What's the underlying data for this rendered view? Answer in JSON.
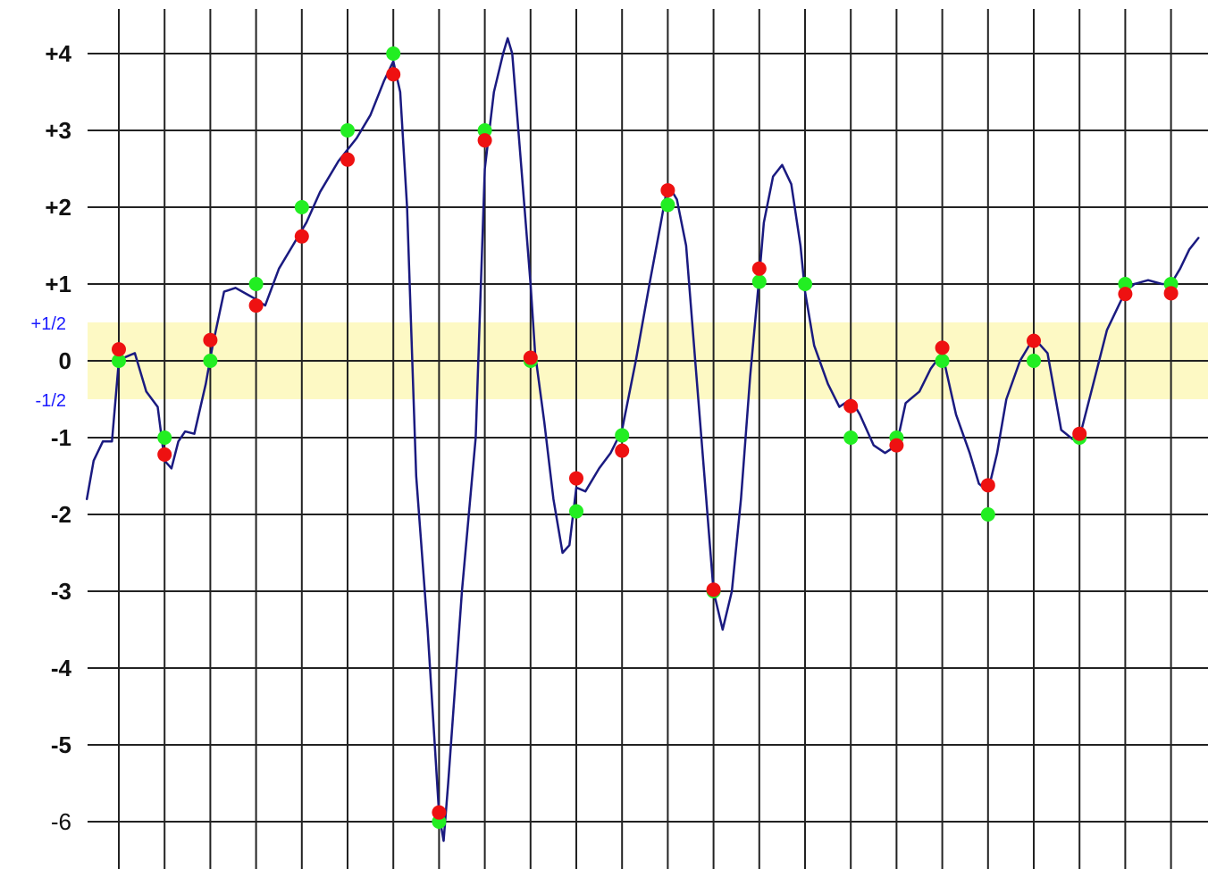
{
  "chart_data": {
    "type": "line",
    "title": "",
    "xlabel": "",
    "ylabel": "",
    "ylim": [
      -6.5,
      4.5
    ],
    "grid": true,
    "legend": "none",
    "y_ticks": [
      {
        "value": 4,
        "label": "+4",
        "bold": true
      },
      {
        "value": 3,
        "label": "+3",
        "bold": true
      },
      {
        "value": 2,
        "label": "+2",
        "bold": true
      },
      {
        "value": 1,
        "label": "+1",
        "bold": true
      },
      {
        "value": 0,
        "label": "0",
        "bold": true
      },
      {
        "value": -1,
        "label": "-1",
        "bold": true
      },
      {
        "value": -2,
        "label": "-2",
        "bold": true
      },
      {
        "value": -3,
        "label": "-3",
        "bold": true
      },
      {
        "value": -4,
        "label": "-4",
        "bold": true
      },
      {
        "value": -5,
        "label": "-5",
        "bold": true
      },
      {
        "value": -6,
        "label": "-6",
        "bold": false
      }
    ],
    "half_band": {
      "upper_label": "+1/2",
      "lower_label": "-1/2",
      "range": [
        -0.5,
        0.5
      ],
      "color": "#fdf9c4"
    },
    "x_gridlines": 24,
    "series": [
      {
        "kind": "line",
        "color": "#1a1a80",
        "points": [
          [
            -0.7,
            -1.8
          ],
          [
            -0.55,
            -1.3
          ],
          [
            -0.35,
            -1.05
          ],
          [
            -0.15,
            -1.05
          ],
          [
            0,
            0.0
          ],
          [
            0.15,
            0.05
          ],
          [
            0.35,
            0.1
          ],
          [
            0.6,
            -0.4
          ],
          [
            0.85,
            -0.6
          ],
          [
            1.0,
            -1.3
          ],
          [
            1.15,
            -1.4
          ],
          [
            1.3,
            -1.05
          ],
          [
            1.45,
            -0.92
          ],
          [
            1.65,
            -0.95
          ],
          [
            1.9,
            -0.3
          ],
          [
            2.05,
            0.2
          ],
          [
            2.3,
            0.9
          ],
          [
            2.55,
            0.95
          ],
          [
            2.85,
            0.85
          ],
          [
            3.0,
            0.8
          ],
          [
            3.2,
            0.72
          ],
          [
            3.5,
            1.2
          ],
          [
            3.8,
            1.5
          ],
          [
            4.1,
            1.8
          ],
          [
            4.4,
            2.2
          ],
          [
            4.8,
            2.6
          ],
          [
            5.2,
            2.9
          ],
          [
            5.5,
            3.2
          ],
          [
            5.8,
            3.65
          ],
          [
            6.0,
            3.9
          ],
          [
            6.15,
            3.5
          ],
          [
            6.3,
            2.0
          ],
          [
            6.5,
            -1.5
          ],
          [
            6.75,
            -3.5
          ],
          [
            7.0,
            -5.9
          ],
          [
            7.1,
            -6.25
          ],
          [
            7.2,
            -5.5
          ],
          [
            7.5,
            -3.0
          ],
          [
            7.8,
            -1.0
          ],
          [
            8.0,
            2.5
          ],
          [
            8.2,
            3.5
          ],
          [
            8.4,
            4.0
          ],
          [
            8.5,
            4.2
          ],
          [
            8.6,
            4.0
          ],
          [
            8.8,
            2.5
          ],
          [
            9.0,
            1.0
          ],
          [
            9.1,
            0.1
          ],
          [
            9.3,
            -0.8
          ],
          [
            9.5,
            -1.8
          ],
          [
            9.7,
            -2.5
          ],
          [
            9.85,
            -2.4
          ],
          [
            10.0,
            -1.65
          ],
          [
            10.2,
            -1.7
          ],
          [
            10.5,
            -1.4
          ],
          [
            10.75,
            -1.2
          ],
          [
            11.0,
            -0.9
          ],
          [
            11.3,
            0.0
          ],
          [
            11.6,
            1.0
          ],
          [
            11.85,
            1.8
          ],
          [
            12.0,
            2.3
          ],
          [
            12.2,
            2.1
          ],
          [
            12.4,
            1.5
          ],
          [
            12.6,
            0.0
          ],
          [
            12.8,
            -1.5
          ],
          [
            13.0,
            -3.0
          ],
          [
            13.2,
            -3.5
          ],
          [
            13.4,
            -3.0
          ],
          [
            13.6,
            -1.8
          ],
          [
            13.8,
            -0.2
          ],
          [
            14.0,
            1.1
          ],
          [
            14.1,
            1.8
          ],
          [
            14.3,
            2.4
          ],
          [
            14.5,
            2.55
          ],
          [
            14.7,
            2.3
          ],
          [
            14.9,
            1.5
          ],
          [
            15.0,
            0.9
          ],
          [
            15.2,
            0.2
          ],
          [
            15.5,
            -0.3
          ],
          [
            15.75,
            -0.6
          ],
          [
            16.0,
            -0.5
          ],
          [
            16.2,
            -0.7
          ],
          [
            16.5,
            -1.1
          ],
          [
            16.75,
            -1.2
          ],
          [
            17.0,
            -1.1
          ],
          [
            17.2,
            -0.55
          ],
          [
            17.5,
            -0.4
          ],
          [
            17.75,
            -0.1
          ],
          [
            18.0,
            0.1
          ],
          [
            18.3,
            -0.7
          ],
          [
            18.6,
            -1.2
          ],
          [
            18.8,
            -1.6
          ],
          [
            19.0,
            -1.7
          ],
          [
            19.2,
            -1.2
          ],
          [
            19.4,
            -0.5
          ],
          [
            19.7,
            0.0
          ],
          [
            20.0,
            0.3
          ],
          [
            20.3,
            0.1
          ],
          [
            20.6,
            -0.9
          ],
          [
            20.85,
            -1.02
          ],
          [
            21.0,
            -1.0
          ],
          [
            21.3,
            -0.3
          ],
          [
            21.6,
            0.4
          ],
          [
            22.0,
            0.9
          ],
          [
            22.2,
            1.0
          ],
          [
            22.5,
            1.05
          ],
          [
            22.8,
            1.0
          ],
          [
            23.0,
            1.0
          ],
          [
            23.2,
            1.2
          ],
          [
            23.4,
            1.45
          ],
          [
            23.6,
            1.6
          ]
        ]
      }
    ],
    "red_points": [
      [
        0,
        0.15
      ],
      [
        1,
        -1.22
      ],
      [
        2,
        0.27
      ],
      [
        3,
        0.72
      ],
      [
        4,
        1.62
      ],
      [
        5,
        2.62
      ],
      [
        6,
        3.73
      ],
      [
        7,
        -5.88
      ],
      [
        8,
        2.87
      ],
      [
        9,
        0.04
      ],
      [
        10,
        -1.53
      ],
      [
        11,
        -1.17
      ],
      [
        12,
        2.22
      ],
      [
        13,
        -2.98
      ],
      [
        14,
        1.2
      ],
      [
        16,
        -0.59
      ],
      [
        17,
        -1.1
      ],
      [
        18,
        0.17
      ],
      [
        19,
        -1.62
      ],
      [
        20,
        0.26
      ],
      [
        21,
        -0.95
      ],
      [
        22,
        0.87
      ],
      [
        23,
        0.88
      ]
    ],
    "green_points": [
      [
        0,
        0.0
      ],
      [
        1,
        -1.0
      ],
      [
        2,
        0.0
      ],
      [
        3,
        1.0
      ],
      [
        4,
        2.0
      ],
      [
        5,
        3.0
      ],
      [
        6,
        4.0
      ],
      [
        7,
        -6.0
      ],
      [
        8,
        3.0
      ],
      [
        9,
        0.0
      ],
      [
        10,
        -1.96
      ],
      [
        11,
        -0.97
      ],
      [
        12,
        2.03
      ],
      [
        13,
        -3.0
      ],
      [
        14,
        1.03
      ],
      [
        15,
        1.0
      ],
      [
        16,
        -1.0
      ],
      [
        17,
        -1.0
      ],
      [
        18,
        0.0
      ],
      [
        19,
        -2.0
      ],
      [
        20,
        0.0
      ],
      [
        21,
        -1.0
      ],
      [
        22,
        1.0
      ],
      [
        23,
        1.0
      ]
    ]
  }
}
